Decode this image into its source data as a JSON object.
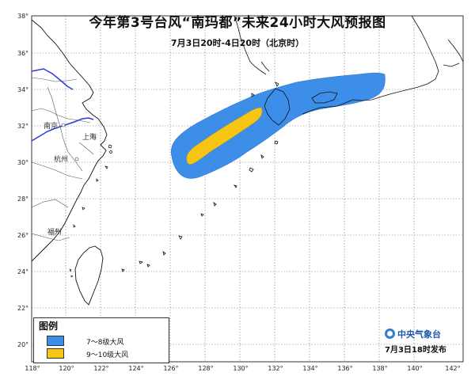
{
  "title": "今年第3号台风“南玛都”未来24小时大风预报图",
  "subtitle": "7月3日20时-4日20时（北京时）",
  "x_ticks": [
    "118°",
    "120°",
    "122°",
    "124°",
    "126°",
    "128°",
    "130°",
    "132°",
    "134°",
    "136°",
    "138°",
    "140°",
    "142°"
  ],
  "y_ticks": [
    "38°",
    "36°",
    "34°",
    "32°",
    "30°",
    "28°",
    "26°",
    "24°",
    "22°",
    "20°"
  ],
  "cities": [
    "南京",
    "上海",
    "杭州",
    "福州"
  ],
  "legend": {
    "title": "图例",
    "items": [
      {
        "label": "7～8级大风",
        "color": "#3d8ee8"
      },
      {
        "label": "9～10级大风",
        "color": "#f7c614"
      }
    ]
  },
  "organization": "中央气象台",
  "organization_icon": "cma-logo-icon",
  "release_time": "7月3日18时发布",
  "colors": {
    "zone_7_8": "#3d8ee8",
    "zone_9_10": "#f7c614",
    "river": "#2b3fd6",
    "coast": "#111111"
  }
}
